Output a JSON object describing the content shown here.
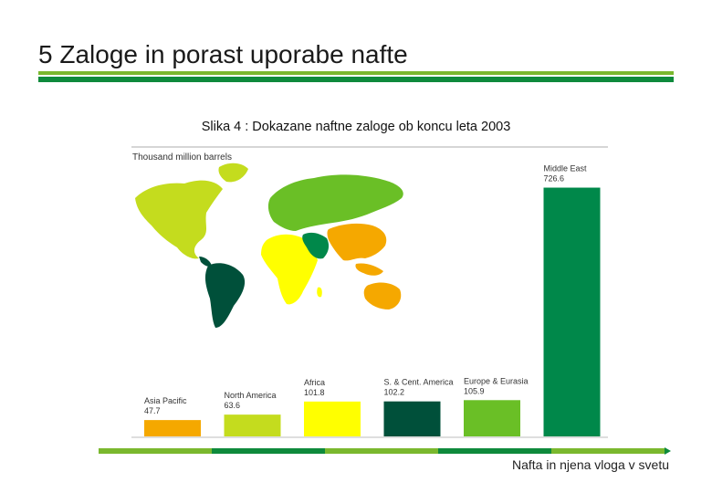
{
  "slide": {
    "title": "5 Zaloge in porast uporabe nafte",
    "caption": "Slika 4 : Dokazane naftne zaloge ob koncu leta 2003",
    "footer": "Nafta in njena vloga v svetu"
  },
  "colors": {
    "dark_green": "#0e8a3c",
    "light_green": "#7ab82e",
    "orange": "#f5a800",
    "lime": "#c4dc1e",
    "yellow": "#ffff00",
    "forest": "#00503a",
    "mid_green": "#6abf26",
    "bright_green": "#00884a"
  },
  "chart_data": {
    "type": "bar",
    "title": "",
    "ylabel": "Thousand million barrels",
    "unit_label": "Thousand million barrels",
    "categories": [
      "Asia Pacific",
      "North America",
      "Africa",
      "S. & Cent. America",
      "Europe & Eurasia",
      "Middle East"
    ],
    "values": [
      47.7,
      63.6,
      101.8,
      102.2,
      105.9,
      726.6
    ],
    "value_labels": [
      "47.7",
      "63.6",
      "101.8",
      "102.2",
      "105.9",
      "726.6"
    ],
    "bar_colors": [
      "#f5a800",
      "#c4dc1e",
      "#ffff00",
      "#00503a",
      "#6abf26",
      "#00884a"
    ],
    "ylim": [
      0,
      800
    ],
    "grid": false,
    "legend": "none",
    "map_region_colors": {
      "north_america": "#c4dc1e",
      "south_america": "#00503a",
      "europe_eurasia": "#6abf26",
      "africa": "#ffff00",
      "middle_east": "#00884a",
      "asia_pacific": "#f5a800"
    }
  }
}
